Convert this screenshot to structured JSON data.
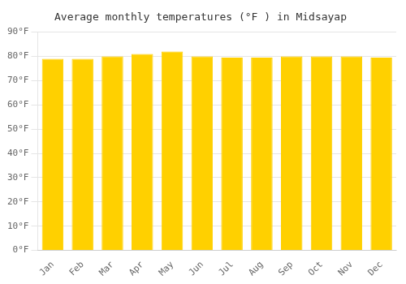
{
  "chart_data": {
    "type": "bar",
    "title": "Average monthly temperatures (°F ) in Midsayap",
    "categories": [
      "Jan",
      "Feb",
      "Mar",
      "Apr",
      "May",
      "Jun",
      "Jul",
      "Aug",
      "Sep",
      "Oct",
      "Nov",
      "Dec"
    ],
    "values": [
      79,
      79,
      80,
      81,
      82,
      80,
      79.5,
      79.5,
      80,
      80,
      80,
      79.5
    ],
    "color": "#FFD000",
    "ylim": [
      0,
      90
    ],
    "yticks": [
      {
        "value": 0,
        "label": "0°F"
      },
      {
        "value": 10,
        "label": "10°F"
      },
      {
        "value": 20,
        "label": "20°F"
      },
      {
        "value": 30,
        "label": "30°F"
      },
      {
        "value": 40,
        "label": "40°F"
      },
      {
        "value": 50,
        "label": "50°F"
      },
      {
        "value": 60,
        "label": "60°F"
      },
      {
        "value": 70,
        "label": "70°F"
      },
      {
        "value": 80,
        "label": "80°F"
      },
      {
        "value": 90,
        "label": "90°F"
      }
    ],
    "grid": true
  }
}
